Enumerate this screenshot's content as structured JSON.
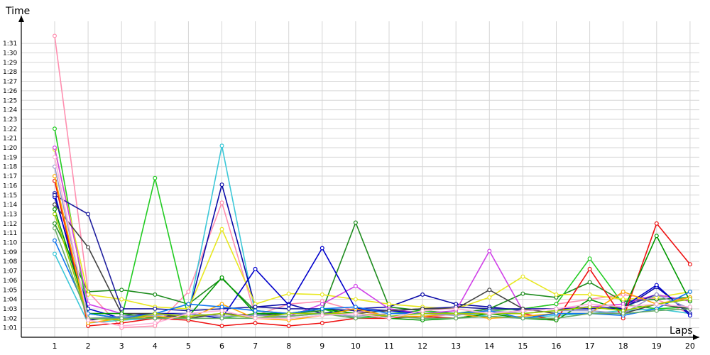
{
  "chart_data": {
    "type": "line",
    "title": "",
    "xlabel": "Laps",
    "ylabel": "Time",
    "x": [
      1,
      2,
      3,
      4,
      5,
      6,
      7,
      8,
      9,
      10,
      11,
      12,
      13,
      14,
      15,
      16,
      17,
      18,
      19,
      20
    ],
    "x_tick_labels": [
      "1",
      "2",
      "3",
      "4",
      "5",
      "6",
      "7",
      "8",
      "9",
      "10",
      "11",
      "12",
      "13",
      "14",
      "15",
      "16",
      "17",
      "18",
      "19",
      "20"
    ],
    "y_tick_labels": [
      "1:01",
      "1:02",
      "1:03",
      "1:04",
      "1:05",
      "1:06",
      "1:07",
      "1:08",
      "1:09",
      "1:10",
      "1:11",
      "1:12",
      "1:13",
      "1:14",
      "1:15",
      "1:16",
      "1:17",
      "1:18",
      "1:19",
      "1:20",
      "1:21",
      "1:22",
      "1:23",
      "1:24",
      "1:25",
      "1:26",
      "1:27",
      "1:28",
      "1:29",
      "1:30",
      "1:31"
    ],
    "y_unit": "seconds",
    "ylim": [
      60,
      92
    ],
    "grid": true,
    "legend": "none",
    "series": [
      {
        "color": "#ff8fb0",
        "values": [
          91.8,
          64.8,
          61.0,
          61.2,
          64.8,
          74.2,
          62.3,
          63.5,
          63.8,
          62.8,
          62.2,
          62.0,
          62.5,
          62.8,
          63.0,
          63.5,
          64.0,
          64.5,
          64.0,
          62.5
        ]
      },
      {
        "color": "#3cc8d8",
        "values": [
          68.8,
          61.5,
          61.8,
          62.0,
          62.5,
          80.2,
          62.5,
          62.0,
          62.3,
          62.5,
          62.0,
          62.2,
          62.5,
          62.2,
          62.0,
          62.3,
          62.5,
          62.8,
          63.0,
          62.5
        ]
      },
      {
        "color": "#0a0aa8",
        "values": [
          75.2,
          61.8,
          62.2,
          62.5,
          62.5,
          76.1,
          63.2,
          63.5,
          62.5,
          63.0,
          63.2,
          64.5,
          63.5,
          63.2,
          62.8,
          63.0,
          63.2,
          63.0,
          65.3,
          62.5
        ]
      },
      {
        "color": "#1e8c1e",
        "values": [
          72.0,
          64.8,
          65.0,
          64.5,
          63.5,
          66.2,
          62.8,
          62.5,
          62.8,
          72.1,
          63.2,
          62.8,
          62.5,
          63.0,
          64.6,
          64.2,
          65.8,
          63.8,
          64.0,
          64.2
        ]
      },
      {
        "color": "#22cc22",
        "values": [
          82.0,
          62.5,
          62.0,
          76.8,
          62.0,
          62.0,
          62.5,
          62.5,
          63.0,
          62.0,
          62.5,
          62.8,
          62.5,
          62.8,
          63.0,
          63.5,
          68.3,
          63.5,
          63.0,
          63.2
        ]
      },
      {
        "color": "#e8e820",
        "values": [
          79.8,
          64.5,
          64.0,
          63.2,
          63.0,
          71.4,
          63.5,
          64.6,
          64.5,
          64.0,
          63.5,
          63.2,
          63.0,
          64.2,
          66.4,
          64.5,
          64.5,
          64.0,
          64.2,
          64.8
        ]
      },
      {
        "color": "#d040e8",
        "values": [
          80.0,
          63.5,
          62.5,
          62.0,
          62.0,
          62.5,
          62.0,
          62.2,
          63.5,
          65.4,
          63.0,
          62.5,
          62.8,
          69.1,
          62.8,
          63.0,
          63.2,
          63.5,
          64.5,
          63.8
        ]
      },
      {
        "color": "#0000cc",
        "values": [
          74.8,
          63.0,
          62.0,
          62.0,
          62.5,
          62.0,
          67.2,
          63.4,
          69.4,
          63.0,
          62.8,
          62.5,
          62.5,
          62.5,
          62.8,
          63.0,
          63.0,
          63.2,
          65.5,
          62.3
        ]
      },
      {
        "color": "#2222a0",
        "values": [
          75.0,
          73.0,
          63.0,
          63.0,
          62.8,
          63.0,
          63.2,
          63.0,
          63.0,
          62.8,
          62.8,
          63.0,
          63.2,
          63.0,
          63.0,
          63.0,
          63.0,
          63.2,
          64.5,
          63.0
        ]
      },
      {
        "color": "#444444",
        "values": [
          74.0,
          69.5,
          62.5,
          62.5,
          62.0,
          62.5,
          62.3,
          62.5,
          62.5,
          62.5,
          62.8,
          63.0,
          63.0,
          65.0,
          63.0,
          62.5,
          62.5,
          62.5,
          63.5,
          63.0
        ]
      },
      {
        "color": "#ee1111",
        "values": [
          76.5,
          61.2,
          61.5,
          62.0,
          61.8,
          61.2,
          61.5,
          61.2,
          61.5,
          62.0,
          62.0,
          62.2,
          62.0,
          62.5,
          62.5,
          61.8,
          67.2,
          62.0,
          72.0,
          67.7
        ]
      },
      {
        "color": "#009900",
        "values": [
          73.5,
          62.5,
          62.5,
          62.0,
          62.2,
          66.3,
          62.5,
          62.5,
          63.0,
          62.5,
          62.0,
          61.8,
          62.0,
          62.5,
          62.0,
          61.8,
          64.0,
          62.8,
          70.7,
          63.8
        ]
      },
      {
        "color": "#ffaa00",
        "values": [
          77.0,
          61.5,
          62.0,
          62.2,
          62.0,
          63.5,
          62.0,
          61.8,
          62.3,
          63.0,
          62.2,
          62.2,
          62.5,
          62.0,
          62.2,
          62.5,
          62.5,
          64.8,
          63.5,
          64.2
        ]
      },
      {
        "color": "#9999cc",
        "values": [
          78.0,
          62.0,
          62.2,
          62.3,
          62.5,
          62.2,
          62.3,
          62.2,
          62.5,
          62.2,
          62.5,
          62.5,
          62.3,
          62.8,
          62.5,
          62.8,
          62.8,
          62.5,
          64.5,
          63.0
        ]
      },
      {
        "color": "#1177ee",
        "values": [
          70.2,
          62.5,
          62.0,
          62.5,
          63.5,
          63.2,
          62.8,
          62.5,
          63.0,
          63.2,
          62.5,
          62.5,
          62.5,
          62.8,
          62.0,
          62.5,
          62.5,
          62.3,
          63.0,
          64.8
        ]
      },
      {
        "color": "#99cc00",
        "values": [
          73.0,
          62.0,
          61.8,
          62.5,
          62.2,
          62.5,
          62.0,
          62.5,
          62.5,
          62.5,
          62.2,
          62.5,
          62.5,
          62.5,
          62.5,
          62.8,
          63.2,
          62.8,
          63.5,
          64.0
        ]
      },
      {
        "color": "#66aa66",
        "values": [
          71.5,
          62.0,
          62.0,
          62.0,
          62.0,
          62.0,
          62.0,
          62.2,
          62.5,
          62.0,
          62.2,
          62.0,
          62.0,
          62.2,
          62.0,
          62.0,
          62.5,
          62.5,
          62.8,
          63.0
        ]
      },
      {
        "color": "#ffb3d9",
        "values": [
          79.0,
          61.8,
          61.2,
          61.5,
          62.5,
          62.8,
          62.0,
          62.0,
          62.3,
          62.5,
          62.0,
          62.8,
          63.0,
          62.5,
          62.8,
          63.0,
          63.5,
          63.2,
          63.5,
          63.2
        ]
      }
    ]
  }
}
